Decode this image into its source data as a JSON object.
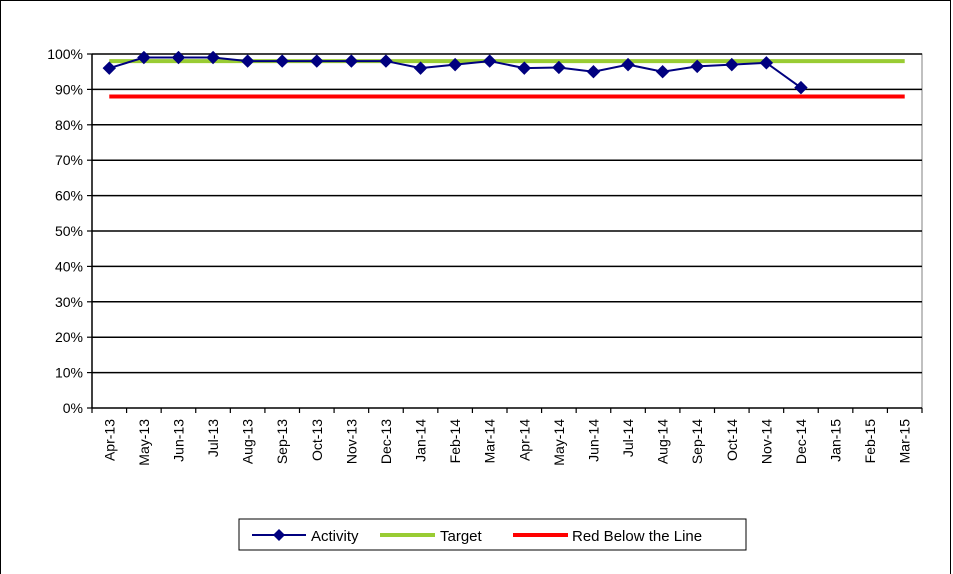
{
  "chart_data": {
    "type": "line",
    "categories": [
      "Apr-13",
      "May-13",
      "Jun-13",
      "Jul-13",
      "Aug-13",
      "Sep-13",
      "Oct-13",
      "Nov-13",
      "Dec-13",
      "Jan-14",
      "Feb-14",
      "Mar-14",
      "Apr-14",
      "May-14",
      "Jun-14",
      "Jul-14",
      "Aug-14",
      "Sep-14",
      "Oct-14",
      "Nov-14",
      "Dec-14",
      "Jan-15",
      "Feb-15",
      "Mar-15"
    ],
    "ylim": [
      0,
      100
    ],
    "yticks": [
      0,
      10,
      20,
      30,
      40,
      50,
      60,
      70,
      80,
      90,
      100
    ],
    "ytick_labels": [
      "0%",
      "10%",
      "20%",
      "30%",
      "40%",
      "50%",
      "60%",
      "70%",
      "80%",
      "90%",
      "100%"
    ],
    "grid": true,
    "legend_position": "bottom",
    "series": [
      {
        "name": "Activity",
        "color": "#00007f",
        "marker": "diamond",
        "values": [
          96,
          99,
          99,
          99,
          98,
          98,
          98,
          98,
          98,
          96,
          97,
          98,
          96,
          96.2,
          95,
          97,
          95,
          96.5,
          97,
          97.5,
          90.5,
          null,
          null,
          null
        ]
      },
      {
        "name": "Target",
        "color": "#99cc33",
        "marker": "none",
        "values": [
          98,
          98,
          98,
          98,
          98,
          98,
          98,
          98,
          98,
          98,
          98,
          98,
          98,
          98,
          98,
          98,
          98,
          98,
          98,
          98,
          98,
          98,
          98,
          98
        ]
      },
      {
        "name": "Red Below the Line",
        "color": "#ff0000",
        "marker": "none",
        "values": [
          88,
          88,
          88,
          88,
          88,
          88,
          88,
          88,
          88,
          88,
          88,
          88,
          88,
          88,
          88,
          88,
          88,
          88,
          88,
          88,
          88,
          88,
          88,
          88
        ]
      }
    ]
  }
}
